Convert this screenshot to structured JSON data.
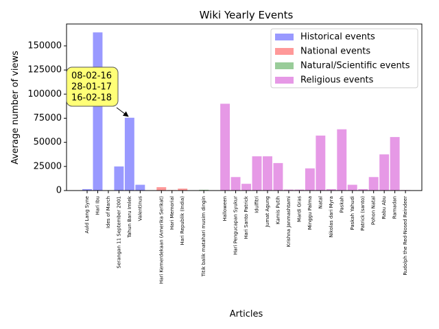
{
  "chart_data": {
    "type": "bar",
    "title": "Wiki Yearly Events",
    "x_label": "Articles",
    "y_label": "Average number of views",
    "categories": [
      "Auld Lang Syne",
      "Hari Ibu",
      "Ides of March",
      "Serangan 11 September 2001",
      "Tahun Baru Imlek",
      "Valentinus",
      null,
      "Hari Kemerdekaan (Amerika Serikat)",
      "Hari Memorial",
      "Hari Republik (India)",
      null,
      "Titik balik matahari musim dingin",
      null,
      "Halloween",
      "Hari Pengucapan Syukur",
      "Hari Santo Patrick",
      "Idulfitri",
      "Jumat Agung",
      "Kamis Putih",
      "Krishna Janmashtami",
      "Mardi Gras",
      "Minggu Palma",
      "Natal",
      "Nikolas dari Myra",
      "Paskah",
      "Paskah Yahudi",
      "Patrick (santo)",
      "Pohon Natal",
      "Rabu Abu",
      "Ramadan",
      "Rudolph the Red-Nosed Reindeer"
    ],
    "series": [
      {
        "name": "Historical events",
        "color": "#9999ff",
        "values": [
          1500,
          164000,
          0,
          25000,
          75500,
          6000,
          null,
          null,
          null,
          null,
          null,
          null,
          null,
          null,
          null,
          null,
          null,
          null,
          null,
          null,
          null,
          null,
          null,
          null,
          null,
          null,
          null,
          null,
          null,
          null,
          null
        ]
      },
      {
        "name": "National events",
        "color": "#ff9999",
        "values": [
          null,
          null,
          null,
          null,
          null,
          null,
          null,
          3500,
          500,
          2000,
          null,
          null,
          null,
          null,
          null,
          null,
          null,
          null,
          null,
          null,
          null,
          null,
          null,
          null,
          null,
          null,
          null,
          null,
          null,
          null,
          null
        ]
      },
      {
        "name": "Natural/Scientific events",
        "color": "#99cc99",
        "values": [
          null,
          null,
          null,
          null,
          null,
          null,
          null,
          null,
          null,
          null,
          null,
          800,
          null,
          null,
          null,
          null,
          null,
          null,
          null,
          null,
          null,
          null,
          null,
          null,
          null,
          null,
          null,
          null,
          null,
          null,
          null
        ]
      },
      {
        "name": "Religious events",
        "color": "#e699e6",
        "values": [
          null,
          null,
          null,
          null,
          null,
          null,
          null,
          null,
          null,
          null,
          null,
          null,
          null,
          90000,
          14000,
          7000,
          35500,
          35500,
          28500,
          1000,
          1000,
          23000,
          57000,
          1500,
          63500,
          6000,
          1500,
          14000,
          37500,
          55500,
          500
        ]
      }
    ],
    "ylim": [
      0,
      172700
    ],
    "yticks": [
      0,
      25000,
      50000,
      75000,
      100000,
      125000,
      150000
    ],
    "legend": "upper right",
    "annotation": {
      "lines": [
        "08-02-16",
        "28-01-17",
        "16-02-18"
      ],
      "category": "Tahun Baru Imlek",
      "box_color": "#ffff77"
    }
  }
}
